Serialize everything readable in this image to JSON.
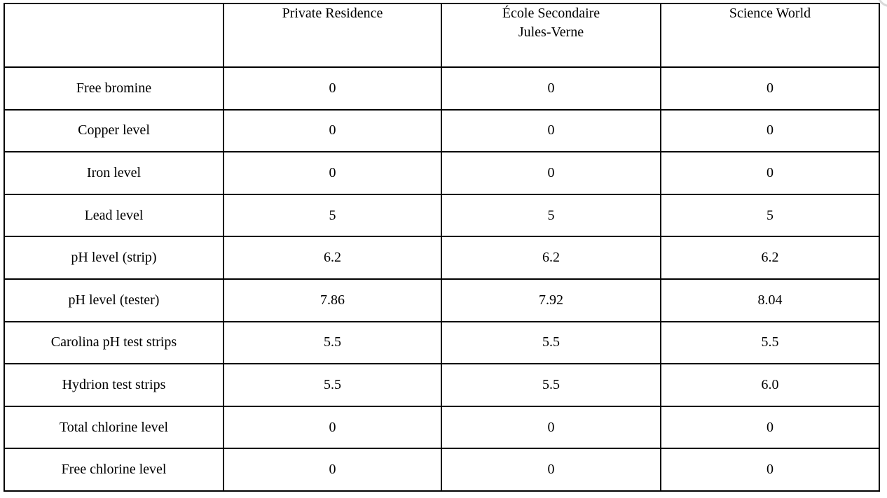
{
  "page": {
    "background_color": "#ffffff",
    "table_border_color": "#000000",
    "text_color": "#000000",
    "artifact_color": "#d9d9d9"
  },
  "table": {
    "corner_label": "",
    "columns": [
      {
        "label": "Private Residence",
        "lines": [
          "Private Residence"
        ]
      },
      {
        "label": "École Secondaire Jules-Verne",
        "lines": [
          "École Secondaire",
          "Jules-Verne"
        ]
      },
      {
        "label": "Science World",
        "lines": [
          "Science World"
        ]
      }
    ],
    "rows": [
      {
        "label": "Free bromine",
        "values": [
          "0",
          "0",
          "0"
        ]
      },
      {
        "label": "Copper level",
        "values": [
          "0",
          "0",
          "0"
        ]
      },
      {
        "label": "Iron level",
        "values": [
          "0",
          "0",
          "0"
        ]
      },
      {
        "label": "Lead level",
        "values": [
          "5",
          "5",
          "5"
        ]
      },
      {
        "label": "pH level (strip)",
        "values": [
          "6.2",
          "6.2",
          "6.2"
        ]
      },
      {
        "label": "pH level (tester)",
        "values": [
          "7.86",
          "7.92",
          "8.04"
        ]
      },
      {
        "label": "Carolina pH test strips",
        "values": [
          "5.5",
          "5.5",
          "5.5"
        ]
      },
      {
        "label": "Hydrion test strips",
        "values": [
          "5.5",
          "5.5",
          "6.0"
        ]
      },
      {
        "label": "Total chlorine level",
        "values": [
          "0",
          "0",
          "0"
        ]
      },
      {
        "label": "Free chlorine level",
        "values": [
          "0",
          "0",
          "0"
        ]
      }
    ]
  },
  "chart_data": {
    "type": "table",
    "title": "",
    "columns": [
      "",
      "Private Residence",
      "École Secondaire Jules-Verne",
      "Science World"
    ],
    "rows": [
      [
        "Free bromine",
        "0",
        "0",
        "0"
      ],
      [
        "Copper level",
        "0",
        "0",
        "0"
      ],
      [
        "Iron level",
        "0",
        "0",
        "0"
      ],
      [
        "Lead level",
        "5",
        "5",
        "5"
      ],
      [
        "pH level (strip)",
        "6.2",
        "6.2",
        "6.2"
      ],
      [
        "pH level (tester)",
        "7.86",
        "7.92",
        "8.04"
      ],
      [
        "Carolina pH test strips",
        "5.5",
        "5.5",
        "5.5"
      ],
      [
        "Hydrion test strips",
        "5.5",
        "5.5",
        "6.0"
      ],
      [
        "Total chlorine level",
        "0",
        "0",
        "0"
      ],
      [
        "Free chlorine level",
        "0",
        "0",
        "0"
      ]
    ]
  }
}
